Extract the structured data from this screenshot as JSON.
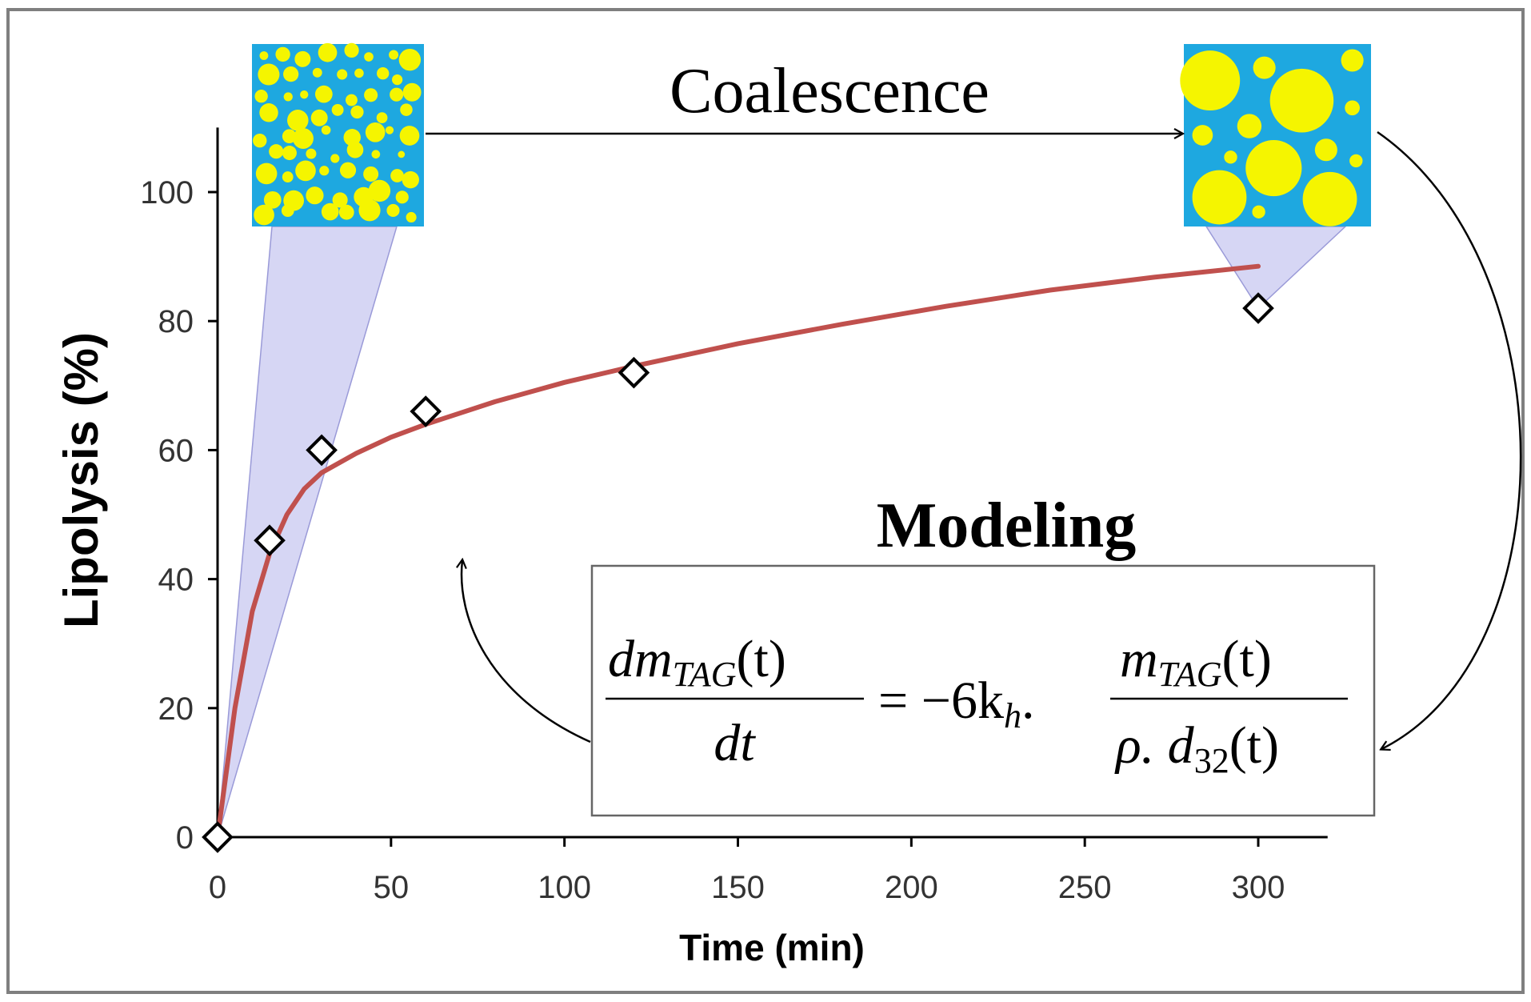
{
  "chart_data": {
    "type": "scatter",
    "xlabel": "Time (min)",
    "ylabel": "Lipolysis (%)",
    "xlim": [
      0,
      320
    ],
    "ylim": [
      0,
      110
    ],
    "x_ticks": [
      "0",
      "50",
      "100",
      "150",
      "200",
      "250",
      "300"
    ],
    "y_ticks": [
      "0",
      "20",
      "40",
      "60",
      "80",
      "100"
    ],
    "grid": false,
    "series": [
      {
        "marker": "diamond",
        "x": [
          0,
          15,
          30,
          60,
          120,
          300
        ],
        "y": [
          0,
          46,
          60,
          66,
          72,
          82
        ]
      },
      {
        "style": "line",
        "color": "#c0504d",
        "x": [
          0,
          5,
          10,
          15,
          20,
          25,
          30,
          40,
          50,
          60,
          80,
          100,
          120,
          150,
          180,
          210,
          240,
          270,
          300
        ],
        "y": [
          0,
          20,
          35,
          44,
          50,
          54,
          56.5,
          59.5,
          62,
          64,
          67.5,
          70.5,
          73,
          76.5,
          79.5,
          82.3,
          84.8,
          86.8,
          88.5
        ]
      }
    ],
    "annotations": {
      "coalescence": "Coalescence",
      "modeling": "Modeling",
      "equation": {
        "lhs_num": "dm",
        "lhs_num_sub": "TAG",
        "lhs_num_tail": "(t)",
        "lhs_den": "dt",
        "rhs_coef": "= −6k",
        "rhs_coef_sub": "h",
        "rhs_dot": ".",
        "rhs_num": "m",
        "rhs_num_sub": "TAG",
        "rhs_num_tail": "(t)",
        "rhs_den": "ρ. d",
        "rhs_den_sub": "32",
        "rhs_den_tail": "(t)"
      }
    }
  },
  "colors": {
    "fit_line": "#c0504d",
    "droplet_bg": "#1ea8e0",
    "droplet": "#f5f500",
    "wedge": "#c8c8f0"
  }
}
